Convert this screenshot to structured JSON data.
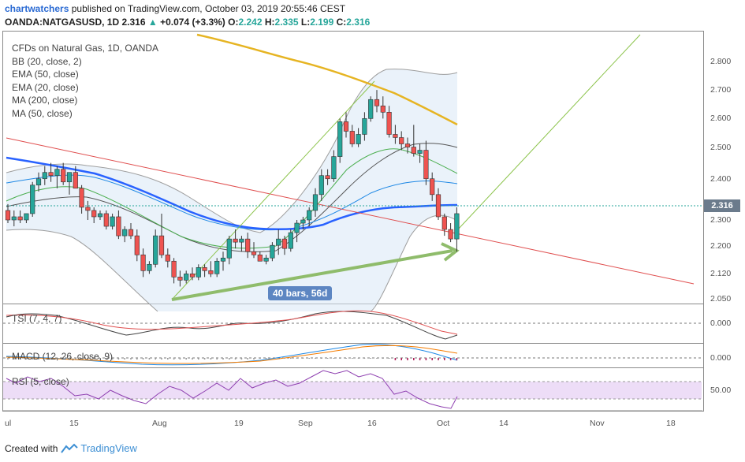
{
  "header": {
    "username": "chartwatchers",
    "published": "published on TradingView.com, October 03, 2019 20:55:46 CEST",
    "symbol": "OANDA:NATGASUSD, 1D",
    "last": "2.316",
    "change": "+0.074 (+3.3%)",
    "o_label": "O:",
    "o_value": "2.242",
    "h_label": "H:",
    "h_value": "2.335",
    "l_label": "L:",
    "l_value": "2.199",
    "c_label": "C:",
    "c_value": "2.316"
  },
  "studies": [
    "CFDs on Natural Gas, 1D, OANDA",
    "BB (20, close, 2)",
    "EMA (50, close)",
    "EMA (20, close)",
    "MA (200, close)",
    "MA (50, close)"
  ],
  "price_axis": [
    "2.800",
    "2.700",
    "2.600",
    "2.500",
    "2.400",
    "2.300",
    "2.200",
    "2.120",
    "2.050"
  ],
  "current_price": "2.316",
  "bars_label": "40 bars, 56d",
  "subpanes": {
    "tsi": {
      "label": "TSI (7, 4, 7)",
      "axis": "0.000"
    },
    "macd": {
      "label": "MACD (12, 26, close, 9)",
      "axis": "0.000"
    },
    "rsi": {
      "label": "RSI (5, close)",
      "axis": "50.00"
    }
  },
  "time_axis": [
    "ul",
    "15",
    "Aug",
    "19",
    "Sep",
    "16",
    "Oct",
    "14",
    "Nov",
    "18"
  ],
  "footer": {
    "created": "Created with",
    "brand": "TradingView"
  },
  "colors": {
    "up": "#26a69a",
    "down": "#ef5350",
    "ema50": "#2962ff",
    "ma200": "#e6b422",
    "bb": "#9e9e9e",
    "trend": "#e05050",
    "arrow": "#8bc34a"
  },
  "chart_data": {
    "type": "candlestick",
    "title": "OANDA:NATGASUSD, 1D",
    "ylim": [
      2.05,
      2.85
    ],
    "candles": [
      {
        "o": 2.33,
        "h": 2.35,
        "l": 2.29,
        "c": 2.3
      },
      {
        "o": 2.3,
        "h": 2.33,
        "l": 2.28,
        "c": 2.31
      },
      {
        "o": 2.31,
        "h": 2.33,
        "l": 2.29,
        "c": 2.3
      },
      {
        "o": 2.3,
        "h": 2.32,
        "l": 2.29,
        "c": 2.32
      },
      {
        "o": 2.32,
        "h": 2.42,
        "l": 2.31,
        "c": 2.41
      },
      {
        "o": 2.41,
        "h": 2.45,
        "l": 2.39,
        "c": 2.43
      },
      {
        "o": 2.43,
        "h": 2.47,
        "l": 2.41,
        "c": 2.45
      },
      {
        "o": 2.45,
        "h": 2.48,
        "l": 2.42,
        "c": 2.44
      },
      {
        "o": 2.44,
        "h": 2.47,
        "l": 2.4,
        "c": 2.46
      },
      {
        "o": 2.46,
        "h": 2.48,
        "l": 2.41,
        "c": 2.42
      },
      {
        "o": 2.42,
        "h": 2.45,
        "l": 2.38,
        "c": 2.45
      },
      {
        "o": 2.45,
        "h": 2.47,
        "l": 2.4,
        "c": 2.4
      },
      {
        "o": 2.4,
        "h": 2.41,
        "l": 2.32,
        "c": 2.34
      },
      {
        "o": 2.34,
        "h": 2.36,
        "l": 2.3,
        "c": 2.33
      },
      {
        "o": 2.33,
        "h": 2.34,
        "l": 2.29,
        "c": 2.31
      },
      {
        "o": 2.31,
        "h": 2.33,
        "l": 2.3,
        "c": 2.32
      },
      {
        "o": 2.32,
        "h": 2.33,
        "l": 2.27,
        "c": 2.28
      },
      {
        "o": 2.28,
        "h": 2.32,
        "l": 2.27,
        "c": 2.31
      },
      {
        "o": 2.31,
        "h": 2.33,
        "l": 2.24,
        "c": 2.25
      },
      {
        "o": 2.25,
        "h": 2.28,
        "l": 2.23,
        "c": 2.27
      },
      {
        "o": 2.27,
        "h": 2.29,
        "l": 2.24,
        "c": 2.25
      },
      {
        "o": 2.25,
        "h": 2.27,
        "l": 2.17,
        "c": 2.19
      },
      {
        "o": 2.19,
        "h": 2.21,
        "l": 2.12,
        "c": 2.14
      },
      {
        "o": 2.14,
        "h": 2.17,
        "l": 2.13,
        "c": 2.16
      },
      {
        "o": 2.16,
        "h": 2.27,
        "l": 2.15,
        "c": 2.25
      },
      {
        "o": 2.25,
        "h": 2.32,
        "l": 2.18,
        "c": 2.19
      },
      {
        "o": 2.19,
        "h": 2.21,
        "l": 2.15,
        "c": 2.17
      },
      {
        "o": 2.17,
        "h": 2.18,
        "l": 2.1,
        "c": 2.12
      },
      {
        "o": 2.12,
        "h": 2.14,
        "l": 2.09,
        "c": 2.11
      },
      {
        "o": 2.11,
        "h": 2.14,
        "l": 2.1,
        "c": 2.13
      },
      {
        "o": 2.13,
        "h": 2.15,
        "l": 2.11,
        "c": 2.12
      },
      {
        "o": 2.12,
        "h": 2.16,
        "l": 2.11,
        "c": 2.15
      },
      {
        "o": 2.15,
        "h": 2.16,
        "l": 2.12,
        "c": 2.14
      },
      {
        "o": 2.14,
        "h": 2.17,
        "l": 2.12,
        "c": 2.13
      },
      {
        "o": 2.13,
        "h": 2.18,
        "l": 2.12,
        "c": 2.17
      },
      {
        "o": 2.17,
        "h": 2.2,
        "l": 2.14,
        "c": 2.18
      },
      {
        "o": 2.18,
        "h": 2.25,
        "l": 2.16,
        "c": 2.24
      },
      {
        "o": 2.24,
        "h": 2.27,
        "l": 2.21,
        "c": 2.23
      },
      {
        "o": 2.23,
        "h": 2.25,
        "l": 2.2,
        "c": 2.24
      },
      {
        "o": 2.24,
        "h": 2.26,
        "l": 2.18,
        "c": 2.2
      },
      {
        "o": 2.2,
        "h": 2.23,
        "l": 2.18,
        "c": 2.19
      },
      {
        "o": 2.19,
        "h": 2.2,
        "l": 2.17,
        "c": 2.17
      },
      {
        "o": 2.17,
        "h": 2.19,
        "l": 2.16,
        "c": 2.18
      },
      {
        "o": 2.18,
        "h": 2.23,
        "l": 2.17,
        "c": 2.22
      },
      {
        "o": 2.22,
        "h": 2.27,
        "l": 2.19,
        "c": 2.24
      },
      {
        "o": 2.24,
        "h": 2.25,
        "l": 2.19,
        "c": 2.21
      },
      {
        "o": 2.21,
        "h": 2.27,
        "l": 2.2,
        "c": 2.26
      },
      {
        "o": 2.26,
        "h": 2.3,
        "l": 2.23,
        "c": 2.29
      },
      {
        "o": 2.29,
        "h": 2.31,
        "l": 2.27,
        "c": 2.3
      },
      {
        "o": 2.3,
        "h": 2.34,
        "l": 2.28,
        "c": 2.33
      },
      {
        "o": 2.33,
        "h": 2.4,
        "l": 2.31,
        "c": 2.38
      },
      {
        "o": 2.38,
        "h": 2.46,
        "l": 2.36,
        "c": 2.44
      },
      {
        "o": 2.44,
        "h": 2.46,
        "l": 2.41,
        "c": 2.43
      },
      {
        "o": 2.43,
        "h": 2.52,
        "l": 2.42,
        "c": 2.5
      },
      {
        "o": 2.5,
        "h": 2.62,
        "l": 2.48,
        "c": 2.61
      },
      {
        "o": 2.61,
        "h": 2.64,
        "l": 2.56,
        "c": 2.58
      },
      {
        "o": 2.58,
        "h": 2.6,
        "l": 2.53,
        "c": 2.54
      },
      {
        "o": 2.54,
        "h": 2.59,
        "l": 2.53,
        "c": 2.57
      },
      {
        "o": 2.57,
        "h": 2.64,
        "l": 2.55,
        "c": 2.62
      },
      {
        "o": 2.62,
        "h": 2.69,
        "l": 2.61,
        "c": 2.68
      },
      {
        "o": 2.68,
        "h": 2.71,
        "l": 2.64,
        "c": 2.66
      },
      {
        "o": 2.66,
        "h": 2.69,
        "l": 2.62,
        "c": 2.64
      },
      {
        "o": 2.64,
        "h": 2.66,
        "l": 2.56,
        "c": 2.57
      },
      {
        "o": 2.57,
        "h": 2.6,
        "l": 2.54,
        "c": 2.56
      },
      {
        "o": 2.56,
        "h": 2.58,
        "l": 2.52,
        "c": 2.54
      },
      {
        "o": 2.54,
        "h": 2.56,
        "l": 2.51,
        "c": 2.53
      },
      {
        "o": 2.53,
        "h": 2.6,
        "l": 2.5,
        "c": 2.51
      },
      {
        "o": 2.51,
        "h": 2.54,
        "l": 2.48,
        "c": 2.52
      },
      {
        "o": 2.52,
        "h": 2.55,
        "l": 2.41,
        "c": 2.43
      },
      {
        "o": 2.43,
        "h": 2.45,
        "l": 2.36,
        "c": 2.38
      },
      {
        "o": 2.38,
        "h": 2.4,
        "l": 2.3,
        "c": 2.31
      },
      {
        "o": 2.31,
        "h": 2.32,
        "l": 2.25,
        "c": 2.27
      },
      {
        "o": 2.27,
        "h": 2.29,
        "l": 2.23,
        "c": 2.24
      },
      {
        "o": 2.24,
        "h": 2.34,
        "l": 2.2,
        "c": 2.32
      }
    ]
  }
}
